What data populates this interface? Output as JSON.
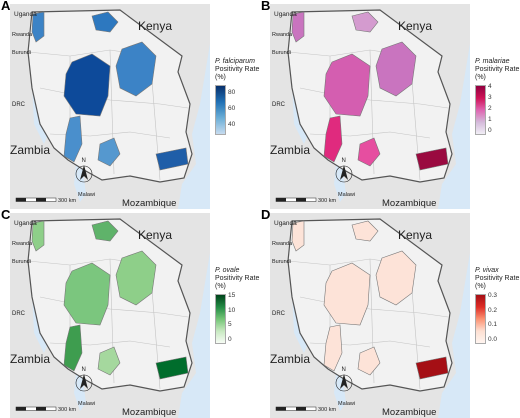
{
  "panels": [
    {
      "letter": "A",
      "species": "P. falciparum",
      "rate_label": "Positivity Rate (%)",
      "ticks": [
        "80",
        "60",
        "40"
      ],
      "scale_colors": [
        "#08306b",
        "#2171b5",
        "#6baed6",
        "#c6dbef"
      ],
      "region_colors": [
        "#0d4a9a",
        "#3c83c6",
        "#4a8fcc",
        "#2d78bf",
        "#5598cf",
        "#1f5ea8"
      ],
      "state": "falciparum"
    },
    {
      "letter": "B",
      "species": "P. malariae",
      "rate_label": "Positivity Rate (%)",
      "ticks": [
        "4",
        "3",
        "2",
        "1",
        "0"
      ],
      "scale_colors": [
        "#91003f",
        "#ce1256",
        "#df65b0",
        "#d4b9da",
        "#f1eef6"
      ],
      "region_colors": [
        "#d45eb0",
        "#c974bf",
        "#e02a7e",
        "#d49bcf",
        "#e64ea0",
        "#9a0a40"
      ],
      "state": "malariae"
    },
    {
      "letter": "C",
      "species": "P. ovale",
      "rate_label": "Positivity Rate (%)",
      "ticks": [
        "15",
        "10",
        "5",
        "0"
      ],
      "scale_colors": [
        "#00441b",
        "#238b45",
        "#74c476",
        "#c7e9c0",
        "#f7fcf5"
      ],
      "region_colors": [
        "#7bc67e",
        "#8ecf89",
        "#3e9d4f",
        "#5fb36a",
        "#a5d89e",
        "#006d2c"
      ],
      "state": "ovale"
    },
    {
      "letter": "D",
      "species": "P. vivax",
      "rate_label": "Positivity Rate (%)",
      "ticks": [
        "0.3",
        "0.2",
        "0.1",
        "0.0"
      ],
      "scale_colors": [
        "#a50f15",
        "#de2d26",
        "#fc9272",
        "#fee0d2",
        "#fff5f0"
      ],
      "region_colors": [
        "#fde3d8",
        "#fde3d8",
        "#fde3d8",
        "#fde3d8",
        "#fde3d8",
        "#a50f15"
      ],
      "state": "vivax"
    }
  ],
  "map_labels": {
    "uganda": "Uganda",
    "rwanda": "Rwanda",
    "burundi": "Burundi",
    "kenya": "Kenya",
    "drc": "DRC",
    "zambia": "Zambia",
    "malawi": "Malawi",
    "mozambique": "Mozambique",
    "north": "N",
    "scale_text": "300 km"
  },
  "colors": {
    "land": "#f2f2f2",
    "neighbor": "#e4e4e4",
    "water": "#d7e8f7",
    "border": "#555555"
  }
}
